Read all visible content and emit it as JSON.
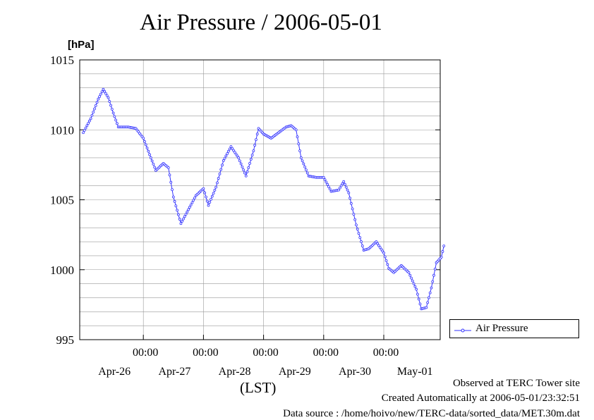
{
  "page": {
    "title": "Air Pressure / 2006-05-01",
    "unit_label": "[hPa]",
    "x_axis_label": "(LST)",
    "footer_lines": [
      "Observed at TERC Tower site",
      "Created Automatically at 2006-05-01/23:32:51",
      "Data source : /home/hoivo/new/TERC-data/sorted_data/MET.30m.dat"
    ]
  },
  "colors": {
    "series": "#3333ff",
    "grid": "#999999",
    "frame": "#000000"
  },
  "chart_data": {
    "type": "line",
    "title": "Air Pressure / 2006-05-01",
    "ylabel": "[hPa]",
    "xlabel": "(LST)",
    "ylim": [
      995,
      1015
    ],
    "yticks": [
      995,
      1000,
      1005,
      1010,
      1015
    ],
    "xlim": [
      "2006-04-25 00:00",
      "2006-05-01 00:00"
    ],
    "xticks": [
      {
        "time": "2006-04-26 00:00",
        "label": "00:00",
        "date": "Apr-26"
      },
      {
        "time": "2006-04-27 00:00",
        "label": "00:00",
        "date": "Apr-27"
      },
      {
        "time": "2006-04-28 00:00",
        "label": "00:00",
        "date": "Apr-28"
      },
      {
        "time": "2006-04-29 00:00",
        "label": "00:00",
        "date": "Apr-29"
      },
      {
        "time": "2006-04-30 00:00",
        "label": "00:00",
        "date": "Apr-30"
      },
      {
        "time": "2006-05-01 00:00",
        "label": "",
        "date": "May-01"
      }
    ],
    "grid": true,
    "legend_position": "right",
    "series": [
      {
        "name": "Air Pressure",
        "points": [
          [
            "2006-04-25 00:00",
            1009.8
          ],
          [
            "2006-04-25 03:00",
            1010.8
          ],
          [
            "2006-04-25 06:00",
            1012.2
          ],
          [
            "2006-04-25 08:00",
            1012.9
          ],
          [
            "2006-04-25 10:00",
            1012.3
          ],
          [
            "2006-04-25 12:00",
            1011.2
          ],
          [
            "2006-04-25 14:00",
            1010.2
          ],
          [
            "2006-04-25 18:00",
            1010.2
          ],
          [
            "2006-04-25 21:00",
            1010.1
          ],
          [
            "2006-04-26 00:00",
            1009.4
          ],
          [
            "2006-04-26 03:00",
            1008.0
          ],
          [
            "2006-04-26 05:00",
            1007.1
          ],
          [
            "2006-04-26 08:00",
            1007.6
          ],
          [
            "2006-04-26 10:00",
            1007.3
          ],
          [
            "2006-04-26 12:00",
            1005.2
          ],
          [
            "2006-04-26 15:00",
            1003.3
          ],
          [
            "2006-04-26 18:00",
            1004.3
          ],
          [
            "2006-04-26 21:00",
            1005.3
          ],
          [
            "2006-04-27 00:00",
            1005.8
          ],
          [
            "2006-04-27 02:00",
            1004.6
          ],
          [
            "2006-04-27 05:00",
            1005.9
          ],
          [
            "2006-04-27 08:00",
            1007.8
          ],
          [
            "2006-04-27 11:00",
            1008.8
          ],
          [
            "2006-04-27 14:00",
            1008.0
          ],
          [
            "2006-04-27 17:00",
            1006.7
          ],
          [
            "2006-04-27 20:00",
            1008.5
          ],
          [
            "2006-04-27 22:00",
            1010.1
          ],
          [
            "2006-04-28 00:00",
            1009.7
          ],
          [
            "2006-04-28 03:00",
            1009.4
          ],
          [
            "2006-04-28 06:00",
            1009.8
          ],
          [
            "2006-04-28 09:00",
            1010.2
          ],
          [
            "2006-04-28 11:00",
            1010.3
          ],
          [
            "2006-04-28 13:00",
            1010.0
          ],
          [
            "2006-04-28 15:00",
            1008.0
          ],
          [
            "2006-04-28 18:00",
            1006.7
          ],
          [
            "2006-04-28 21:00",
            1006.6
          ],
          [
            "2006-04-29 00:00",
            1006.6
          ],
          [
            "2006-04-29 03:00",
            1005.6
          ],
          [
            "2006-04-29 06:00",
            1005.7
          ],
          [
            "2006-04-29 08:00",
            1006.3
          ],
          [
            "2006-04-29 10:00",
            1005.5
          ],
          [
            "2006-04-29 13:00",
            1003.2
          ],
          [
            "2006-04-29 16:00",
            1001.4
          ],
          [
            "2006-04-29 18:00",
            1001.5
          ],
          [
            "2006-04-29 21:00",
            1002.0
          ],
          [
            "2006-04-30 00:00",
            1001.2
          ],
          [
            "2006-04-30 02:00",
            1000.1
          ],
          [
            "2006-04-30 04:00",
            999.8
          ],
          [
            "2006-04-30 07:00",
            1000.3
          ],
          [
            "2006-04-30 10:00",
            999.8
          ],
          [
            "2006-04-30 13:00",
            998.6
          ],
          [
            "2006-04-30 15:00",
            997.2
          ],
          [
            "2006-04-30 17:00",
            997.3
          ],
          [
            "2006-04-30 19:00",
            998.7
          ],
          [
            "2006-04-30 21:00",
            1000.5
          ],
          [
            "2006-04-30 23:00",
            1000.9
          ],
          [
            "2006-05-01 00:00",
            1001.7
          ]
        ]
      }
    ]
  }
}
